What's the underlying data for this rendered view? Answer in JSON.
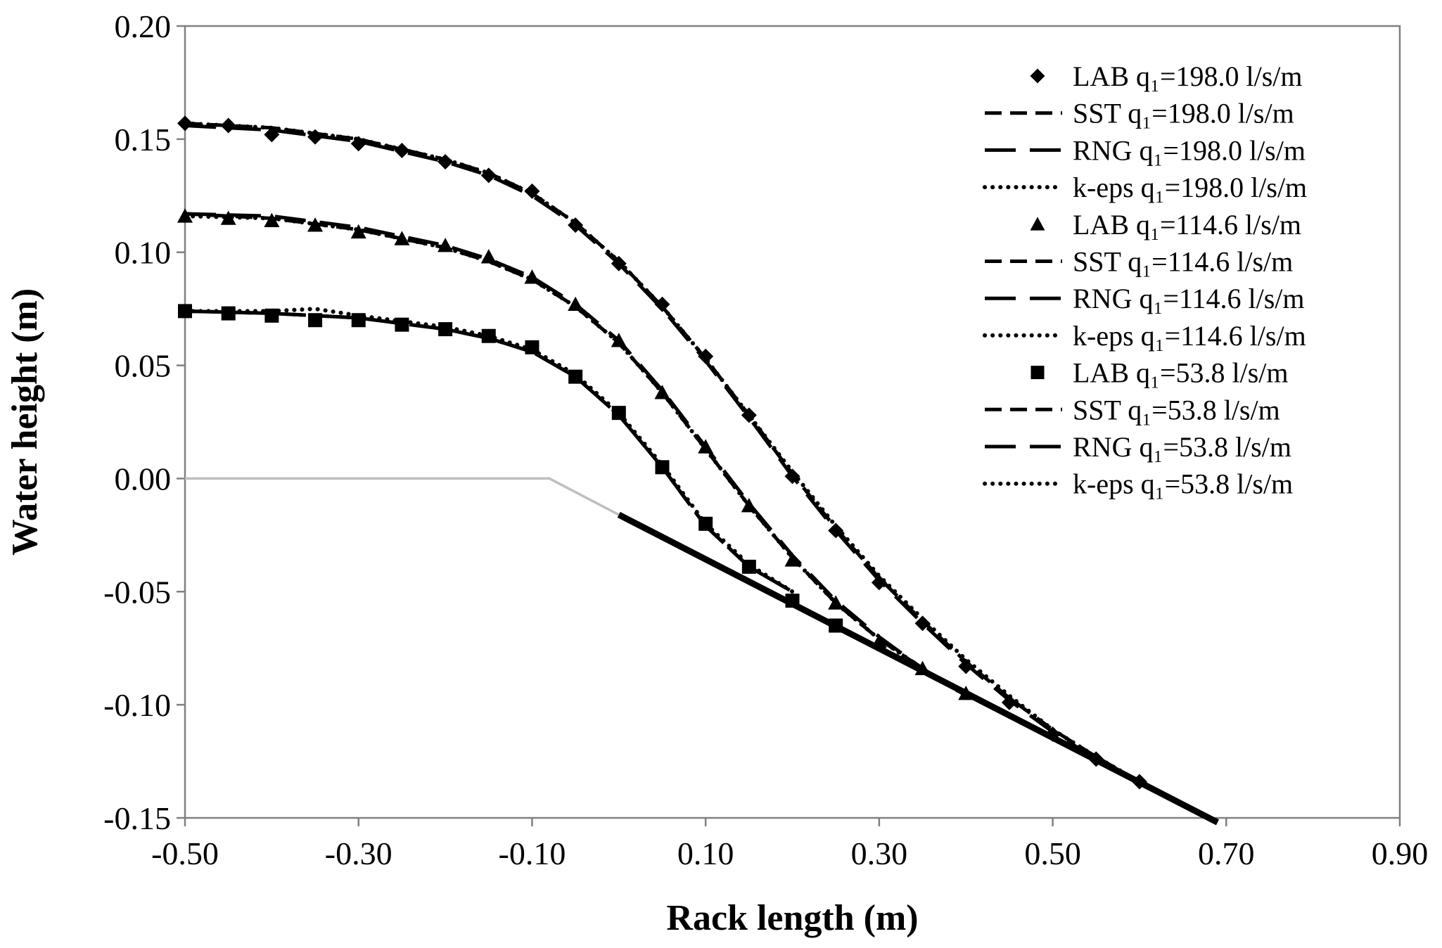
{
  "chart_data": {
    "type": "line",
    "title": "",
    "xlabel": "Rack length (m)",
    "ylabel": "Water height (m)",
    "xlim": [
      -0.5,
      0.9
    ],
    "ylim": [
      -0.15,
      0.2
    ],
    "xticks": [
      -0.5,
      -0.3,
      -0.1,
      0.1,
      0.3,
      0.5,
      0.7,
      0.9
    ],
    "yticks": [
      -0.15,
      -0.1,
      -0.05,
      0.0,
      0.05,
      0.1,
      0.15,
      0.2
    ],
    "xtick_labels": [
      "-0.50",
      "-0.30",
      "-0.10",
      "0.10",
      "0.30",
      "0.50",
      "0.70",
      "0.90"
    ],
    "ytick_labels": [
      "-0.15",
      "-0.10",
      "-0.05",
      "0.00",
      "0.05",
      "0.10",
      "0.15",
      "0.20"
    ],
    "grid": false,
    "legend_position": "top-right",
    "legend": [
      {
        "label": "LAB q₁=198.0 l/s/m",
        "kind": "marker",
        "marker": "diamond"
      },
      {
        "label": "SST q₁=198.0 l/s/m",
        "kind": "line",
        "style": "sst"
      },
      {
        "label": "RNG q₁=198.0 l/s/m",
        "kind": "line",
        "style": "rng"
      },
      {
        "label": "k-eps q₁=198.0 l/s/m",
        "kind": "line",
        "style": "keps"
      },
      {
        "label": "LAB q₁=114.6 l/s/m",
        "kind": "marker",
        "marker": "triangle"
      },
      {
        "label": "SST q₁=114.6 l/s/m",
        "kind": "line",
        "style": "sst"
      },
      {
        "label": "RNG q₁=114.6 l/s/m",
        "kind": "line",
        "style": "rng"
      },
      {
        "label": "k-eps q₁=114.6 l/s/m",
        "kind": "line",
        "style": "keps"
      },
      {
        "label": "LAB q₁=53.8 l/s/m",
        "kind": "marker",
        "marker": "square"
      },
      {
        "label": "SST q₁=53.8 l/s/m",
        "kind": "line",
        "style": "sst"
      },
      {
        "label": "RNG q₁=53.8 l/s/m",
        "kind": "line",
        "style": "rng"
      },
      {
        "label": "k-eps q₁=53.8 l/s/m",
        "kind": "line",
        "style": "keps"
      }
    ],
    "geometry": [
      {
        "name": "channel-bed",
        "color": "#bfbfbf",
        "x": [
          -0.5,
          -0.08,
          0.0
        ],
        "y": [
          0.0,
          0.0,
          -0.016
        ]
      },
      {
        "name": "rack",
        "color": "#000000",
        "x": [
          0.0,
          0.69
        ],
        "y": [
          -0.016,
          -0.152
        ]
      }
    ],
    "series": [
      {
        "name": "LAB q₁=198.0 l/s/m",
        "kind": "marker",
        "marker": "diamond",
        "x": [
          -0.5,
          -0.45,
          -0.4,
          -0.35,
          -0.3,
          -0.25,
          -0.2,
          -0.15,
          -0.1,
          -0.05,
          0.0,
          0.05,
          0.1,
          0.15,
          0.2,
          0.25,
          0.3,
          0.35,
          0.4,
          0.45,
          0.5,
          0.55,
          0.6
        ],
        "y": [
          0.157,
          0.156,
          0.152,
          0.151,
          0.148,
          0.145,
          0.14,
          0.134,
          0.127,
          0.112,
          0.095,
          0.077,
          0.054,
          0.028,
          0.001,
          -0.023,
          -0.046,
          -0.064,
          -0.083,
          -0.099,
          -0.113,
          -0.124,
          -0.134
        ]
      },
      {
        "name": "SST q₁=198.0 l/s/m",
        "kind": "line",
        "style": "sst",
        "x": [
          -0.5,
          -0.4,
          -0.3,
          -0.2,
          -0.15,
          -0.1,
          -0.05,
          0.0,
          0.05,
          0.1,
          0.15,
          0.2,
          0.25,
          0.3,
          0.35,
          0.4,
          0.45,
          0.5,
          0.55,
          0.6
        ],
        "y": [
          0.157,
          0.155,
          0.15,
          0.141,
          0.135,
          0.126,
          0.113,
          0.096,
          0.076,
          0.053,
          0.028,
          0.002,
          -0.022,
          -0.044,
          -0.063,
          -0.081,
          -0.097,
          -0.111,
          -0.123,
          -0.134
        ]
      },
      {
        "name": "RNG q₁=198.0 l/s/m",
        "kind": "line",
        "style": "rng",
        "x": [
          -0.5,
          -0.4,
          -0.3,
          -0.2,
          -0.15,
          -0.1,
          -0.05,
          0.0,
          0.05,
          0.1,
          0.15,
          0.2,
          0.25,
          0.3,
          0.35,
          0.4,
          0.45,
          0.5,
          0.55,
          0.6
        ],
        "y": [
          0.156,
          0.154,
          0.149,
          0.14,
          0.134,
          0.125,
          0.112,
          0.095,
          0.075,
          0.052,
          0.027,
          0.001,
          -0.023,
          -0.045,
          -0.064,
          -0.082,
          -0.098,
          -0.112,
          -0.124,
          -0.135
        ]
      },
      {
        "name": "k-eps q₁=198.0 l/s/m",
        "kind": "line",
        "style": "keps",
        "x": [
          -0.5,
          -0.4,
          -0.3,
          -0.2,
          -0.15,
          -0.1,
          -0.05,
          0.0,
          0.05,
          0.1,
          0.15,
          0.2,
          0.25,
          0.3,
          0.35,
          0.4,
          0.45,
          0.5,
          0.55,
          0.6
        ],
        "y": [
          0.157,
          0.155,
          0.15,
          0.141,
          0.135,
          0.126,
          0.113,
          0.096,
          0.076,
          0.053,
          0.028,
          0.003,
          -0.021,
          -0.043,
          -0.062,
          -0.08,
          -0.096,
          -0.111,
          -0.123,
          -0.134
        ]
      },
      {
        "name": "LAB q₁=114.6 l/s/m",
        "kind": "marker",
        "marker": "triangle",
        "x": [
          -0.5,
          -0.45,
          -0.4,
          -0.35,
          -0.3,
          -0.25,
          -0.2,
          -0.15,
          -0.1,
          -0.05,
          0.0,
          0.05,
          0.1,
          0.15,
          0.2,
          0.25,
          0.3,
          0.35,
          0.4
        ],
        "y": [
          0.116,
          0.115,
          0.114,
          0.112,
          0.109,
          0.106,
          0.103,
          0.098,
          0.089,
          0.077,
          0.061,
          0.038,
          0.014,
          -0.012,
          -0.036,
          -0.055,
          -0.072,
          -0.084,
          -0.095
        ]
      },
      {
        "name": "SST q₁=114.6 l/s/m",
        "kind": "line",
        "style": "sst",
        "x": [
          -0.5,
          -0.4,
          -0.3,
          -0.2,
          -0.15,
          -0.1,
          -0.05,
          0.0,
          0.05,
          0.1,
          0.15,
          0.2,
          0.25,
          0.3,
          0.35,
          0.4
        ],
        "y": [
          0.117,
          0.115,
          0.11,
          0.102,
          0.096,
          0.088,
          0.076,
          0.06,
          0.038,
          0.013,
          -0.012,
          -0.035,
          -0.055,
          -0.071,
          -0.084,
          -0.096
        ]
      },
      {
        "name": "RNG q₁=114.6 l/s/m",
        "kind": "line",
        "style": "rng",
        "x": [
          -0.5,
          -0.4,
          -0.3,
          -0.2,
          -0.15,
          -0.1,
          -0.05,
          0.0,
          0.05,
          0.1,
          0.15,
          0.2,
          0.25,
          0.3,
          0.35,
          0.4
        ],
        "y": [
          0.117,
          0.116,
          0.111,
          0.103,
          0.097,
          0.089,
          0.077,
          0.061,
          0.039,
          0.014,
          -0.011,
          -0.034,
          -0.054,
          -0.07,
          -0.084,
          -0.096
        ]
      },
      {
        "name": "k-eps q₁=114.6 l/s/m",
        "kind": "line",
        "style": "keps",
        "x": [
          -0.5,
          -0.4,
          -0.3,
          -0.2,
          -0.15,
          -0.1,
          -0.05,
          0.0,
          0.05,
          0.1,
          0.15,
          0.2,
          0.25,
          0.3,
          0.35,
          0.4
        ],
        "y": [
          0.116,
          0.115,
          0.11,
          0.102,
          0.096,
          0.088,
          0.076,
          0.06,
          0.038,
          0.013,
          -0.012,
          -0.035,
          -0.055,
          -0.071,
          -0.084,
          -0.096
        ]
      },
      {
        "name": "LAB q₁=53.8 l/s/m",
        "kind": "marker",
        "marker": "square",
        "x": [
          -0.5,
          -0.45,
          -0.4,
          -0.35,
          -0.3,
          -0.25,
          -0.2,
          -0.15,
          -0.1,
          -0.05,
          0.0,
          0.05,
          0.1,
          0.15,
          0.2,
          0.25
        ],
        "y": [
          0.074,
          0.073,
          0.072,
          0.07,
          0.07,
          0.068,
          0.066,
          0.063,
          0.058,
          0.045,
          0.029,
          0.005,
          -0.02,
          -0.039,
          -0.054,
          -0.065
        ]
      },
      {
        "name": "SST q₁=53.8 l/s/m",
        "kind": "line",
        "style": "sst",
        "x": [
          -0.5,
          -0.4,
          -0.3,
          -0.2,
          -0.15,
          -0.1,
          -0.05,
          0.0,
          0.05,
          0.1,
          0.15,
          0.2
        ],
        "y": [
          0.074,
          0.073,
          0.071,
          0.066,
          0.062,
          0.056,
          0.045,
          0.028,
          0.005,
          -0.021,
          -0.039,
          -0.05
        ]
      },
      {
        "name": "RNG q₁=53.8 l/s/m",
        "kind": "line",
        "style": "rng",
        "x": [
          -0.5,
          -0.4,
          -0.3,
          -0.2,
          -0.15,
          -0.1,
          -0.05,
          0.0,
          0.05,
          0.1,
          0.15,
          0.2
        ],
        "y": [
          0.074,
          0.073,
          0.071,
          0.066,
          0.062,
          0.056,
          0.045,
          0.028,
          0.005,
          -0.021,
          -0.039,
          -0.05
        ]
      },
      {
        "name": "k-eps q₁=53.8 l/s/m",
        "kind": "line",
        "style": "keps",
        "x": [
          -0.5,
          -0.4,
          -0.35,
          -0.3,
          -0.2,
          -0.15,
          -0.1,
          -0.05,
          0.0,
          0.05,
          0.1,
          0.15,
          0.2
        ],
        "y": [
          0.074,
          0.074,
          0.075,
          0.072,
          0.067,
          0.063,
          0.057,
          0.046,
          0.029,
          0.006,
          -0.02,
          -0.038,
          -0.05
        ]
      }
    ]
  }
}
